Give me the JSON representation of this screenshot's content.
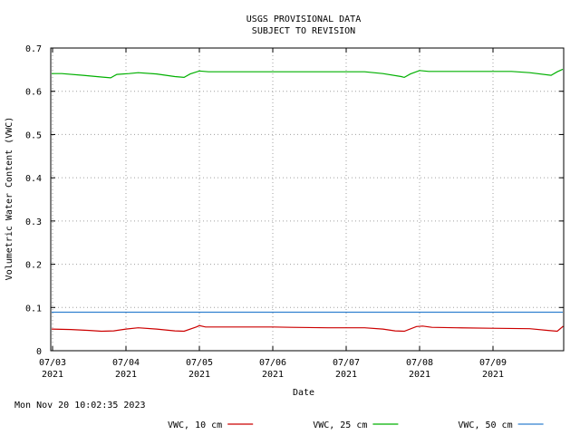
{
  "header": {
    "line1": "USGS PROVISIONAL DATA",
    "line2": "SUBJECT TO REVISION"
  },
  "footer": {
    "timestamp": "Mon Nov 20 10:02:35 2023"
  },
  "colors": {
    "grid": "#a0a0a0",
    "axis": "#000000",
    "vwc_10": "#cc0000",
    "vwc_25": "#00b000",
    "vwc_50": "#3080d0"
  },
  "chart_data": {
    "type": "line",
    "xlabel": "Date",
    "ylabel": "Volumetric Water Content (VWC)",
    "xlim": [
      "2021-07-03T00:00",
      "2021-07-10T00:00"
    ],
    "ylim": [
      0,
      0.7
    ],
    "grid": true,
    "legend_placement": "bottom-center",
    "x_ticks": [
      {
        "date": "2021-07-03",
        "label": "07/03",
        "year": "2021"
      },
      {
        "date": "2021-07-04",
        "label": "07/04",
        "year": "2021"
      },
      {
        "date": "2021-07-05",
        "label": "07/05",
        "year": "2021"
      },
      {
        "date": "2021-07-06",
        "label": "07/06",
        "year": "2021"
      },
      {
        "date": "2021-07-07",
        "label": "07/07",
        "year": "2021"
      },
      {
        "date": "2021-07-08",
        "label": "07/08",
        "year": "2021"
      },
      {
        "date": "2021-07-09",
        "label": "07/09",
        "year": "2021"
      }
    ],
    "y_ticks": [
      "0",
      "0.1",
      "0.2",
      "0.3",
      "0.4",
      "0.5",
      "0.6",
      "0.7"
    ],
    "series": [
      {
        "name": "VWC, 10 cm",
        "color": "#cc0000",
        "points": [
          [
            "2021-07-02T22:00",
            0.05
          ],
          [
            "2021-07-03T06:00",
            0.049
          ],
          [
            "2021-07-03T12:00",
            0.047
          ],
          [
            "2021-07-03T16:00",
            0.045
          ],
          [
            "2021-07-03T20:00",
            0.046
          ],
          [
            "2021-07-04T00:00",
            0.05
          ],
          [
            "2021-07-04T04:00",
            0.053
          ],
          [
            "2021-07-04T10:00",
            0.05
          ],
          [
            "2021-07-04T16:00",
            0.046
          ],
          [
            "2021-07-04T19:00",
            0.045
          ],
          [
            "2021-07-04T23:00",
            0.055
          ],
          [
            "2021-07-05T00:00",
            0.058
          ],
          [
            "2021-07-05T02:00",
            0.055
          ],
          [
            "2021-07-05T12:00",
            0.055
          ],
          [
            "2021-07-06T00:00",
            0.055
          ],
          [
            "2021-07-06T06:00",
            0.054
          ],
          [
            "2021-07-06T18:00",
            0.053
          ],
          [
            "2021-07-07T06:00",
            0.053
          ],
          [
            "2021-07-07T12:00",
            0.05
          ],
          [
            "2021-07-07T16:00",
            0.046
          ],
          [
            "2021-07-07T19:00",
            0.045
          ],
          [
            "2021-07-07T23:00",
            0.056
          ],
          [
            "2021-07-08T01:00",
            0.057
          ],
          [
            "2021-07-08T04:00",
            0.054
          ],
          [
            "2021-07-08T12:00",
            0.053
          ],
          [
            "2021-07-08T23:00",
            0.052
          ],
          [
            "2021-07-09T12:00",
            0.051
          ],
          [
            "2021-07-09T18:00",
            0.047
          ],
          [
            "2021-07-09T21:00",
            0.045
          ],
          [
            "2021-07-10T00:00",
            0.056
          ],
          [
            "2021-07-10T02:00",
            0.057
          ]
        ]
      },
      {
        "name": "VWC, 25 cm",
        "color": "#00b000",
        "points": [
          [
            "2021-07-02T22:00",
            0.641
          ],
          [
            "2021-07-03T03:00",
            0.641
          ],
          [
            "2021-07-03T10:00",
            0.637
          ],
          [
            "2021-07-03T16:00",
            0.633
          ],
          [
            "2021-07-03T19:00",
            0.631
          ],
          [
            "2021-07-03T21:00",
            0.639
          ],
          [
            "2021-07-04T01:00",
            0.641
          ],
          [
            "2021-07-04T04:00",
            0.643
          ],
          [
            "2021-07-04T10:00",
            0.64
          ],
          [
            "2021-07-04T16:00",
            0.634
          ],
          [
            "2021-07-04T19:00",
            0.632
          ],
          [
            "2021-07-04T21:00",
            0.64
          ],
          [
            "2021-07-05T00:00",
            0.647
          ],
          [
            "2021-07-05T03:00",
            0.645
          ],
          [
            "2021-07-05T12:00",
            0.645
          ],
          [
            "2021-07-06T00:00",
            0.645
          ],
          [
            "2021-07-06T12:00",
            0.645
          ],
          [
            "2021-07-07T00:00",
            0.645
          ],
          [
            "2021-07-07T06:00",
            0.645
          ],
          [
            "2021-07-07T12:00",
            0.641
          ],
          [
            "2021-07-07T18:00",
            0.634
          ],
          [
            "2021-07-07T19:00",
            0.632
          ],
          [
            "2021-07-07T21:00",
            0.64
          ],
          [
            "2021-07-08T00:00",
            0.648
          ],
          [
            "2021-07-08T03:00",
            0.646
          ],
          [
            "2021-07-08T12:00",
            0.646
          ],
          [
            "2021-07-09T00:00",
            0.646
          ],
          [
            "2021-07-09T06:00",
            0.646
          ],
          [
            "2021-07-09T12:00",
            0.643
          ],
          [
            "2021-07-09T19:00",
            0.637
          ],
          [
            "2021-07-09T21:00",
            0.645
          ],
          [
            "2021-07-10T00:00",
            0.651
          ],
          [
            "2021-07-10T02:00",
            0.651
          ]
        ]
      },
      {
        "name": "VWC, 50 cm",
        "color": "#3080d0",
        "points": [
          [
            "2021-07-02T22:00",
            0.089
          ],
          [
            "2021-07-10T02:00",
            0.089
          ]
        ]
      }
    ]
  }
}
